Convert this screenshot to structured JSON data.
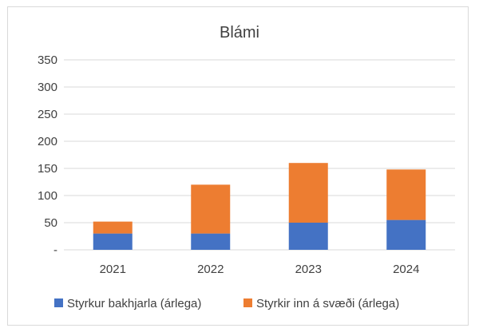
{
  "chart_data": {
    "type": "bar",
    "stacked": true,
    "title": "Blámi",
    "xlabel": "",
    "ylabel": "",
    "categories": [
      "2021",
      "2022",
      "2023",
      "2024"
    ],
    "series": [
      {
        "name": "Styrkur bakhjarla (árlega)",
        "values": [
          30,
          30,
          50,
          55
        ],
        "color": "#4472c4"
      },
      {
        "name": "Styrkir inn á svæði (árlega)",
        "values": [
          22,
          90,
          110,
          93
        ],
        "color": "#ed7d31"
      }
    ],
    "ylim": [
      0,
      350
    ],
    "yticks": [
      0,
      50,
      100,
      150,
      200,
      250,
      300,
      350
    ],
    "ytick_labels": [
      "-",
      "50",
      "100",
      "150",
      "200",
      "250",
      "300",
      "350"
    ],
    "grid": true,
    "legend_position": "bottom",
    "colors": {
      "grid": "#d9d9d9",
      "text": "#404040"
    }
  }
}
